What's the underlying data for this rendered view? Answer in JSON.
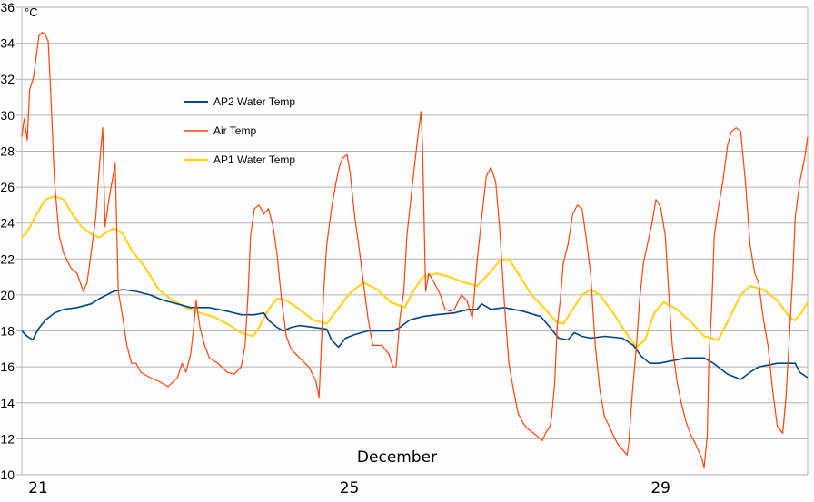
{
  "chart_data": {
    "type": "line",
    "title": "",
    "unit_label": "°C",
    "xlabel": "December",
    "ylabel": "",
    "xlim": [
      20.79,
      30.89
    ],
    "ylim": [
      10,
      36
    ],
    "y_ticks": [
      10,
      12,
      14,
      16,
      18,
      20,
      22,
      24,
      26,
      28,
      30,
      32,
      34,
      36
    ],
    "x_ticks": [
      21,
      25,
      29
    ],
    "grid": "horizontal",
    "legend_position": "upper-left-center",
    "series": [
      {
        "name": "AP2 Water Temp",
        "color": "#004586",
        "x": [
          20.79,
          20.86,
          20.93,
          21.0,
          21.09,
          21.21,
          21.33,
          21.5,
          21.68,
          21.79,
          21.97,
          22.09,
          22.26,
          22.44,
          22.61,
          22.79,
          22.96,
          23.2,
          23.43,
          23.61,
          23.78,
          23.9,
          23.96,
          24.07,
          24.15,
          24.25,
          24.36,
          24.54,
          24.71,
          24.77,
          24.86,
          24.95,
          25.07,
          25.24,
          25.42,
          25.56,
          25.65,
          25.77,
          25.94,
          26.12,
          26.35,
          26.53,
          26.64,
          26.7,
          26.82,
          26.99,
          27.23,
          27.46,
          27.58,
          27.69,
          27.81,
          27.89,
          27.99,
          28.1,
          28.28,
          28.51,
          28.65,
          28.75,
          28.86,
          28.98,
          29.1,
          29.33,
          29.56,
          29.68,
          29.86,
          30.03,
          30.15,
          30.26,
          30.5,
          30.67,
          30.73,
          30.79,
          30.89
        ],
        "y": [
          18.0,
          17.7,
          17.5,
          18.1,
          18.6,
          19.0,
          19.2,
          19.3,
          19.5,
          19.8,
          20.2,
          20.3,
          20.2,
          20.0,
          19.7,
          19.5,
          19.3,
          19.3,
          19.1,
          18.9,
          18.9,
          19.0,
          18.6,
          18.2,
          18.0,
          18.2,
          18.3,
          18.2,
          18.1,
          17.5,
          17.1,
          17.6,
          17.8,
          18.0,
          18.0,
          18.0,
          18.2,
          18.6,
          18.8,
          18.9,
          19.0,
          19.2,
          19.2,
          19.5,
          19.2,
          19.3,
          19.1,
          18.8,
          18.2,
          17.6,
          17.5,
          17.9,
          17.7,
          17.6,
          17.7,
          17.6,
          17.2,
          16.6,
          16.2,
          16.2,
          16.3,
          16.5,
          16.5,
          16.2,
          15.6,
          15.3,
          15.7,
          16.0,
          16.2,
          16.2,
          16.2,
          15.7,
          15.4
        ]
      },
      {
        "name": "Air Temp",
        "color": "#ff420e",
        "x": [
          20.79,
          20.82,
          20.86,
          20.89,
          20.94,
          20.98,
          21.01,
          21.05,
          21.09,
          21.13,
          21.16,
          21.21,
          21.27,
          21.33,
          21.42,
          21.5,
          21.58,
          21.63,
          21.68,
          21.74,
          21.79,
          21.83,
          21.86,
          21.91,
          21.95,
          21.99,
          22.03,
          22.09,
          22.14,
          22.2,
          22.26,
          22.32,
          22.44,
          22.55,
          22.67,
          22.79,
          22.85,
          22.9,
          22.96,
          23.0,
          23.03,
          23.08,
          23.14,
          23.2,
          23.31,
          23.43,
          23.52,
          23.61,
          23.66,
          23.7,
          23.73,
          23.78,
          23.84,
          23.9,
          23.96,
          24.02,
          24.07,
          24.13,
          24.19,
          24.25,
          24.36,
          24.48,
          24.57,
          24.61,
          24.63,
          24.67,
          24.71,
          24.77,
          24.83,
          24.87,
          24.91,
          24.97,
          25.01,
          25.07,
          25.12,
          25.18,
          25.24,
          25.3,
          25.42,
          25.51,
          25.56,
          25.6,
          25.65,
          25.7,
          25.74,
          25.79,
          25.84,
          25.88,
          25.92,
          25.94,
          25.98,
          26.02,
          26.09,
          26.17,
          26.23,
          26.3,
          26.35,
          26.44,
          26.51,
          26.58,
          26.64,
          26.7,
          26.76,
          26.82,
          26.88,
          26.93,
          26.99,
          27.05,
          27.11,
          27.17,
          27.23,
          27.28,
          27.4,
          27.48,
          27.52,
          27.58,
          27.6,
          27.64,
          27.67,
          27.71,
          27.75,
          27.81,
          27.87,
          27.93,
          27.99,
          28.04,
          28.1,
          28.16,
          28.22,
          28.28,
          28.34,
          28.39,
          28.45,
          28.51,
          28.57,
          28.59,
          28.64,
          28.69,
          28.73,
          28.78,
          28.83,
          28.89,
          28.94,
          29.0,
          29.06,
          29.11,
          29.15,
          29.21,
          29.27,
          29.33,
          29.39,
          29.45,
          29.53,
          29.56,
          29.6,
          29.62,
          29.66,
          29.69,
          29.74,
          29.8,
          29.86,
          29.91,
          29.97,
          30.03,
          30.09,
          30.15,
          30.21,
          30.26,
          30.32,
          30.38,
          30.44,
          30.5,
          30.57,
          30.61,
          30.65,
          30.7,
          30.73,
          30.79,
          30.85,
          30.89
        ],
        "y": [
          28.8,
          29.8,
          28.6,
          31.4,
          32.1,
          33.4,
          34.4,
          34.6,
          34.5,
          34.1,
          31.4,
          26.3,
          23.3,
          22.3,
          21.5,
          21.2,
          20.2,
          20.7,
          22.3,
          24.3,
          27.3,
          29.3,
          23.8,
          25.3,
          26.3,
          27.3,
          20.2,
          18.7,
          17.2,
          16.2,
          16.2,
          15.7,
          15.4,
          15.2,
          14.9,
          15.4,
          16.2,
          15.7,
          16.7,
          18.2,
          19.7,
          18.2,
          17.2,
          16.5,
          16.2,
          15.7,
          15.6,
          16.0,
          17.2,
          20.2,
          23.3,
          24.8,
          25.0,
          24.5,
          24.8,
          23.8,
          22.3,
          19.7,
          17.7,
          17.0,
          16.5,
          16.0,
          15.2,
          14.3,
          16.2,
          20.2,
          22.8,
          24.8,
          26.3,
          27.1,
          27.6,
          27.8,
          26.8,
          24.3,
          22.8,
          20.7,
          18.7,
          17.2,
          17.2,
          16.7,
          16.0,
          16.0,
          18.7,
          20.2,
          23.3,
          25.3,
          27.3,
          28.8,
          30.2,
          28.3,
          20.2,
          21.2,
          20.7,
          20.0,
          19.2,
          19.1,
          19.2,
          20.0,
          19.7,
          18.7,
          21.8,
          24.3,
          26.6,
          27.1,
          26.3,
          23.8,
          19.7,
          16.2,
          14.7,
          13.4,
          12.9,
          12.6,
          12.2,
          11.9,
          12.3,
          12.7,
          13.2,
          15.2,
          18.2,
          19.7,
          21.8,
          22.8,
          24.5,
          25.0,
          24.8,
          23.3,
          21.2,
          17.2,
          14.7,
          13.2,
          12.7,
          12.2,
          11.7,
          11.4,
          11.1,
          11.7,
          14.7,
          17.2,
          19.7,
          21.8,
          22.8,
          24.0,
          25.3,
          24.9,
          23.3,
          19.7,
          17.2,
          15.2,
          13.9,
          12.9,
          12.2,
          11.7,
          10.9,
          10.4,
          12.2,
          16.2,
          19.7,
          23.3,
          24.8,
          26.3,
          28.3,
          29.1,
          29.3,
          29.1,
          26.3,
          22.8,
          21.2,
          20.7,
          18.7,
          17.2,
          14.7,
          12.7,
          12.3,
          14.2,
          17.2,
          21.2,
          24.3,
          26.3,
          27.6,
          28.8
        ]
      },
      {
        "name": "AP1 Water Temp",
        "color": "#ffd320",
        "x": [
          20.79,
          20.86,
          20.98,
          21.09,
          21.21,
          21.33,
          21.44,
          21.56,
          21.68,
          21.79,
          21.85,
          21.97,
          22.09,
          22.2,
          22.38,
          22.55,
          22.73,
          22.9,
          23.08,
          23.25,
          23.43,
          23.61,
          23.76,
          23.84,
          23.96,
          24.07,
          24.19,
          24.36,
          24.54,
          24.71,
          24.83,
          25.01,
          25.18,
          25.36,
          25.53,
          25.71,
          25.82,
          25.94,
          26.12,
          26.29,
          26.47,
          26.64,
          26.82,
          26.93,
          27.05,
          27.17,
          27.34,
          27.52,
          27.66,
          27.75,
          27.87,
          27.99,
          28.1,
          28.22,
          28.39,
          28.57,
          28.69,
          28.8,
          28.92,
          29.04,
          29.21,
          29.39,
          29.56,
          29.74,
          29.86,
          30.03,
          30.15,
          30.32,
          30.5,
          30.67,
          30.73,
          30.81,
          30.89
        ],
        "y": [
          23.2,
          23.5,
          24.5,
          25.3,
          25.5,
          25.3,
          24.5,
          23.8,
          23.4,
          23.2,
          23.4,
          23.7,
          23.4,
          22.5,
          21.5,
          20.3,
          19.7,
          19.3,
          19.0,
          18.8,
          18.4,
          17.9,
          17.7,
          18.2,
          19.2,
          19.8,
          19.7,
          19.2,
          18.6,
          18.4,
          19.1,
          20.1,
          20.7,
          20.3,
          19.6,
          19.3,
          20.2,
          21.0,
          21.2,
          21.0,
          20.7,
          20.5,
          21.3,
          21.9,
          22.0,
          21.2,
          20.0,
          19.2,
          18.5,
          18.4,
          19.2,
          20.0,
          20.3,
          20.0,
          19.0,
          17.8,
          17.1,
          17.5,
          19.0,
          19.6,
          19.2,
          18.5,
          17.7,
          17.5,
          18.5,
          20.0,
          20.5,
          20.3,
          19.7,
          18.7,
          18.6,
          19.0,
          19.6
        ]
      }
    ]
  }
}
